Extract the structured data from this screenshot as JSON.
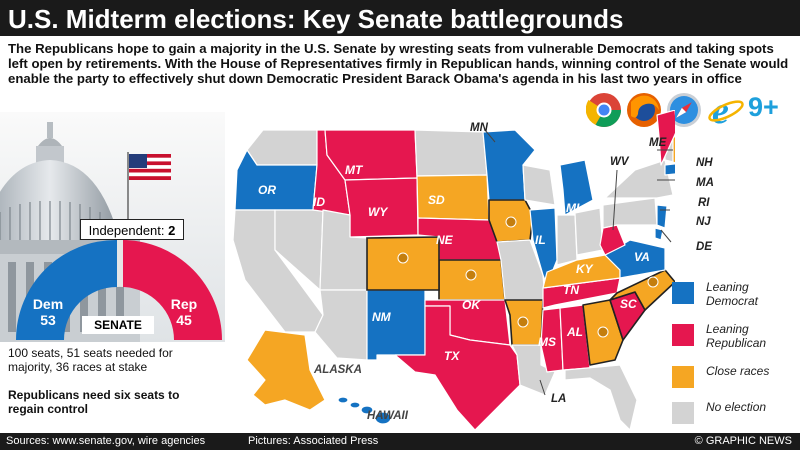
{
  "title": "U.S. Midterm elections: Key Senate battlegrounds",
  "intro": "The Republicans hope to gain a majority in the U.S. Senate by wresting seats from vulnerable Democrats and taking spots left open by retirements. With the House of Representatives firmly in Republican hands, winning control of the Senate would enable the party to effectively shut down Democratic President Barack Obama's agenda in his last two years in office",
  "browsers": {
    "icons": [
      "chrome-icon",
      "firefox-icon",
      "safari-icon",
      "ie-icon"
    ],
    "version_label": "9+"
  },
  "senate": {
    "independent_label": "Independent:",
    "independent_count": "2",
    "dem_label": "Dem",
    "dem_count": "53",
    "rep_label": "Rep",
    "rep_count": "45",
    "senate_label": "SENATE",
    "seats_note": "100 seats, 51 seats needed for majority, 36 races at stake",
    "six_note": "Republicans need six seats to regain control"
  },
  "colors": {
    "democrat": "#1572c2",
    "republican": "#e5174f",
    "close": "#f5a623",
    "no_election": "#d3d3d3"
  },
  "map": {
    "states": {
      "OR": "OR",
      "ID": "ID",
      "MT": "MT",
      "WY": "WY",
      "SD": "SD",
      "NE": "NE",
      "NM": "NM",
      "OK": "OK",
      "TX": "TX",
      "MI": "MI",
      "IL": "IL",
      "KY": "KY",
      "TN": "TN",
      "MS": "MS",
      "AL": "AL",
      "VA": "VA",
      "SC": "SC"
    },
    "callouts": {
      "MN": "MN",
      "WV": "WV",
      "ME": "ME",
      "NH": "NH",
      "MA": "MA",
      "RI": "RI",
      "NJ": "NJ",
      "DE": "DE",
      "LA": "LA",
      "ALASKA": "ALASKA",
      "HAWAII": "HAWAII"
    }
  },
  "legend": [
    {
      "label": "Leaning Democrat",
      "color": "#1572c2"
    },
    {
      "label": "Leaning Republican",
      "color": "#e5174f"
    },
    {
      "label": "Close races",
      "color": "#f5a623"
    },
    {
      "label": "No election",
      "color": "#d3d3d3"
    }
  ],
  "footer": {
    "sources": "Sources: www.senate.gov, wire agencies",
    "pictures": "Pictures: Associated Press",
    "credit": "© GRAPHIC NEWS"
  }
}
